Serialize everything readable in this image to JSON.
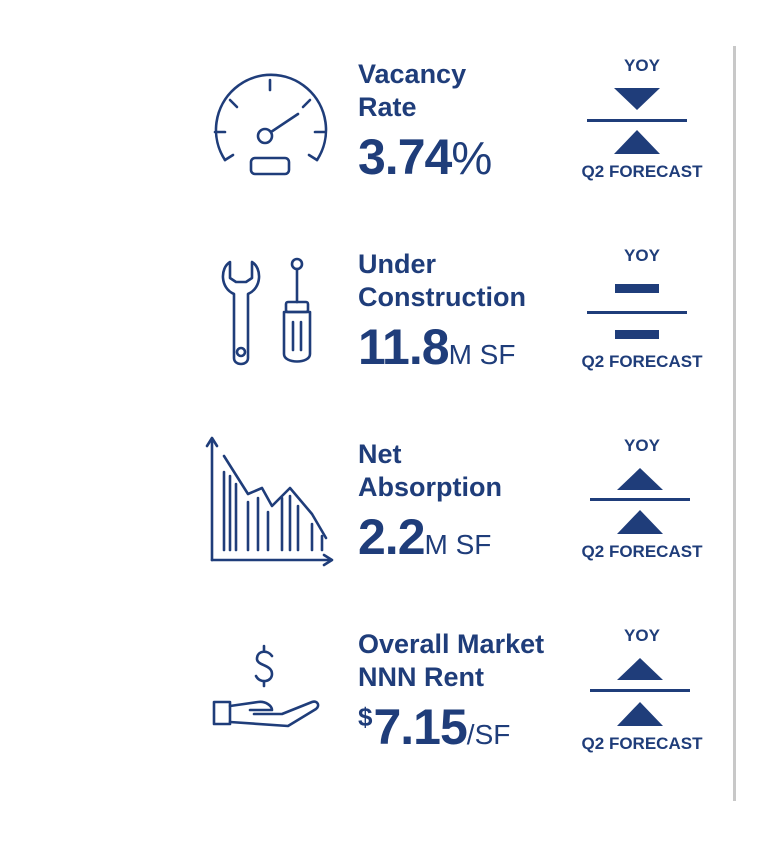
{
  "metrics": [
    {
      "title_lines": [
        "Vacancy",
        "Rate"
      ],
      "value": "3.74",
      "unit": "%",
      "yoy_label": "YOY",
      "forecast_label": "Q2 FORECAST",
      "yoy_trend": "down",
      "forecast_trend": "up"
    },
    {
      "title_lines": [
        "Under",
        "Construction"
      ],
      "value": "11.8",
      "unit": "M SF",
      "yoy_label": "YOY",
      "forecast_label": "Q2 FORECAST",
      "yoy_trend": "flat",
      "forecast_trend": "flat"
    },
    {
      "title_lines": [
        "Net",
        "Absorption"
      ],
      "value": "2.2",
      "unit": "M SF",
      "yoy_label": "YOY",
      "forecast_label": "Q2 FORECAST",
      "yoy_trend": "up",
      "forecast_trend": "up"
    },
    {
      "title_lines": [
        "Overall Market",
        "NNN Rent"
      ],
      "currency": "$",
      "value": "7.15",
      "unit": "/SF",
      "yoy_label": "YOY",
      "forecast_label": "Q2 FORECAST",
      "yoy_trend": "up",
      "forecast_trend": "up"
    }
  ],
  "icons": [
    "speedometer-icon",
    "wrench-screwdriver-icon",
    "declining-chart-icon",
    "hand-dollar-icon"
  ],
  "colors": {
    "primary": "#1f3d7a",
    "divider": "#c8c8c8"
  }
}
